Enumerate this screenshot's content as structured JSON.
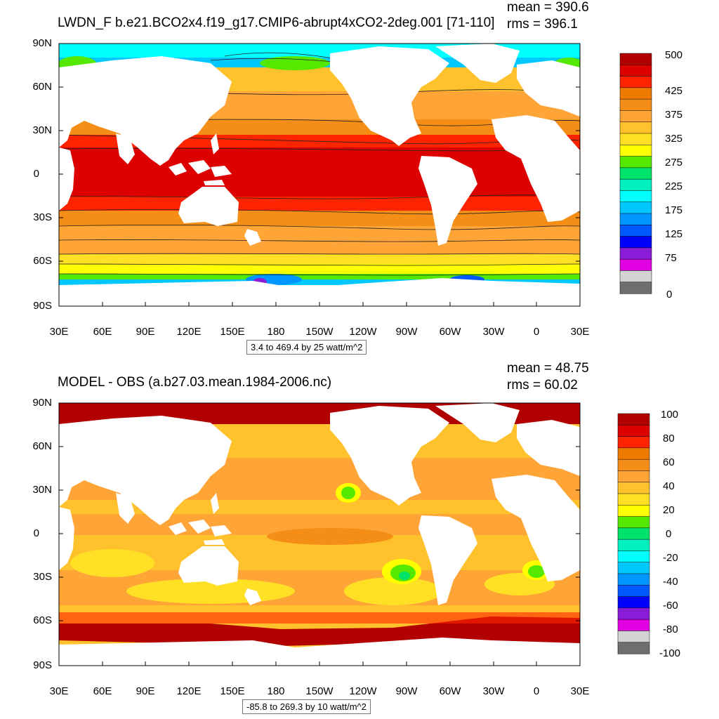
{
  "maps": [
    {
      "title": "LWDN_F b.e21.BCO2x4.f19_g17.CMIP6-abrupt4xCO2-2deg.001 [71-110]",
      "mean": "mean = 390.6",
      "rms": "rms = 396.1",
      "info": "3.4 to 469.4 by 25 watt/m^2",
      "lat_labels": [
        "90N",
        "60N",
        "30N",
        "0",
        "30S",
        "60S",
        "90S"
      ],
      "lon_labels": [
        "30E",
        "60E",
        "90E",
        "120E",
        "150E",
        "180",
        "150W",
        "120W",
        "90W",
        "60W",
        "30W",
        "0",
        "30E"
      ],
      "colorbar": {
        "labels": [
          "500",
          "425",
          "375",
          "325",
          "275",
          "225",
          "175",
          "125",
          "75",
          "0"
        ],
        "colors": [
          "#b20000",
          "#dd0000",
          "#ff2400",
          "#ee7a00",
          "#f58e16",
          "#ffa436",
          "#ffc22d",
          "#ffe024",
          "#ffff00",
          "#55e800",
          "#00e36a",
          "#00f0c0",
          "#00ffff",
          "#00c8ff",
          "#0096ff",
          "#0058ff",
          "#0000ff",
          "#8a1bd6",
          "#e200e2",
          "#d3d3d3",
          "#6e6e6e"
        ]
      }
    },
    {
      "title": "MODEL - OBS (a.b27.03.mean.1984-2006.nc)",
      "mean": "mean = 48.75",
      "rms": "rms = 60.02",
      "info": "-85.8 to 269.3 by 10 watt/m^2",
      "lat_labels": [
        "90N",
        "60N",
        "30N",
        "0",
        "30S",
        "60S",
        "90S"
      ],
      "lon_labels": [
        "30E",
        "60E",
        "90E",
        "120E",
        "150E",
        "180",
        "150W",
        "120W",
        "90W",
        "60W",
        "30W",
        "0",
        "30E"
      ],
      "colorbar": {
        "labels": [
          "100",
          "80",
          "60",
          "40",
          "20",
          "0",
          "-20",
          "-40",
          "-60",
          "-80",
          "-100"
        ],
        "colors": [
          "#b20000",
          "#dd0000",
          "#ff2400",
          "#ee7a00",
          "#f58e16",
          "#ffa436",
          "#ffc22d",
          "#ffe024",
          "#ffff00",
          "#55e800",
          "#00e36a",
          "#00f0c0",
          "#00ffff",
          "#00c8ff",
          "#0096ff",
          "#0058ff",
          "#0000ff",
          "#8a1bd6",
          "#e200e2",
          "#d3d3d3",
          "#6e6e6e"
        ]
      }
    }
  ]
}
